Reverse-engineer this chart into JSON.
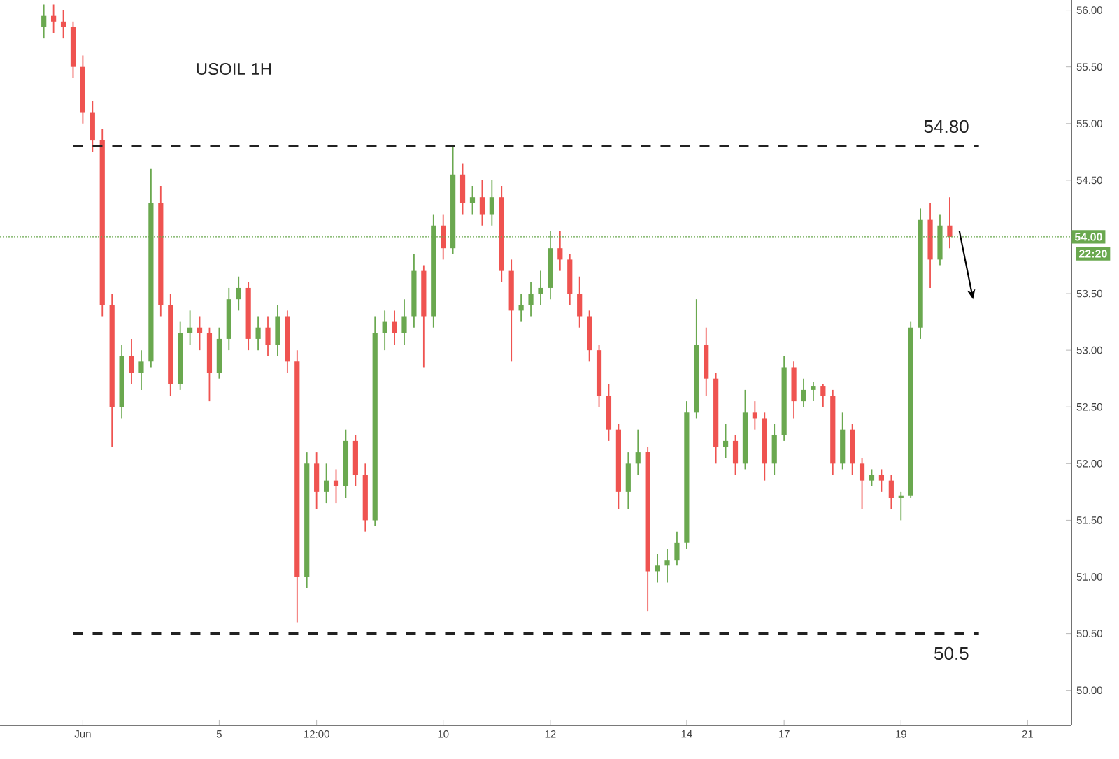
{
  "chart_data": {
    "type": "candlestick",
    "title": "USOIL 1H",
    "categories": [
      null,
      null,
      null,
      null,
      null,
      null,
      null,
      null,
      "Jun",
      null,
      null,
      null,
      null,
      null,
      null,
      null,
      null,
      null,
      null,
      null,
      null,
      null,
      "5",
      null,
      null,
      null,
      null,
      null,
      null,
      null,
      null,
      null,
      "12:00",
      null,
      null,
      null,
      null,
      null,
      null,
      null,
      null,
      null,
      null,
      null,
      null,
      "10",
      null,
      null,
      null,
      null,
      null,
      null,
      null,
      null,
      null,
      null,
      "12",
      null,
      null,
      null,
      null,
      null,
      null,
      null,
      null,
      null,
      null,
      null,
      null,
      null,
      "14",
      null,
      null,
      null,
      null,
      null,
      null,
      null,
      null,
      null,
      "17",
      null,
      null,
      null,
      null,
      null,
      null,
      null,
      null,
      null,
      null,
      null,
      "19",
      null,
      null,
      null,
      null,
      null,
      null,
      null,
      null,
      null,
      null,
      null,
      null,
      "21",
      null,
      null,
      null,
      null
    ],
    "ylim": [
      49.69,
      56.09
    ],
    "yticks": [
      {
        "value": 50,
        "label": "50.00"
      },
      {
        "value": 50.5,
        "label": "50.50"
      },
      {
        "value": 51,
        "label": "51.00"
      },
      {
        "value": 51.5,
        "label": "51.50"
      },
      {
        "value": 52,
        "label": "52.00"
      },
      {
        "value": 52.5,
        "label": "52.50"
      },
      {
        "value": 53,
        "label": "53.00"
      },
      {
        "value": 53.5,
        "label": "53.50"
      },
      {
        "value": 54.5,
        "label": "54.50"
      },
      {
        "value": 55,
        "label": "55.00"
      },
      {
        "value": 55.5,
        "label": "55.50"
      },
      {
        "value": 56,
        "label": "56.00"
      }
    ],
    "ohlc": [
      null,
      null,
      null,
      null,
      [
        55.85,
        56.05,
        55.75,
        55.95
      ],
      [
        55.95,
        56.05,
        55.8,
        55.9
      ],
      [
        55.9,
        56.0,
        55.75,
        55.85
      ],
      [
        55.85,
        55.9,
        55.4,
        55.5
      ],
      [
        55.5,
        55.6,
        55.0,
        55.1
      ],
      [
        55.1,
        55.2,
        54.75,
        54.85
      ],
      [
        54.85,
        54.95,
        53.3,
        53.4
      ],
      [
        53.4,
        53.5,
        52.15,
        52.5
      ],
      [
        52.5,
        53.05,
        52.4,
        52.95
      ],
      [
        52.95,
        53.1,
        52.7,
        52.8
      ],
      [
        52.8,
        53.0,
        52.65,
        52.9
      ],
      [
        52.9,
        54.6,
        52.85,
        54.3
      ],
      [
        54.3,
        54.45,
        53.3,
        53.4
      ],
      [
        53.4,
        53.5,
        52.6,
        52.7
      ],
      [
        52.7,
        53.25,
        52.65,
        53.15
      ],
      [
        53.15,
        53.35,
        53.05,
        53.2
      ],
      [
        53.2,
        53.3,
        53.0,
        53.15
      ],
      [
        53.15,
        53.2,
        52.55,
        52.8
      ],
      [
        52.8,
        53.2,
        52.75,
        53.1
      ],
      [
        53.1,
        53.55,
        53.0,
        53.45
      ],
      [
        53.45,
        53.65,
        53.35,
        53.55
      ],
      [
        53.55,
        53.6,
        53.0,
        53.1
      ],
      [
        53.1,
        53.3,
        53.0,
        53.2
      ],
      [
        53.2,
        53.3,
        52.95,
        53.05
      ],
      [
        53.05,
        53.4,
        52.95,
        53.3
      ],
      [
        53.3,
        53.35,
        52.8,
        52.9
      ],
      [
        52.9,
        53.0,
        50.6,
        51.0
      ],
      [
        51.0,
        52.1,
        50.9,
        52.0
      ],
      [
        52.0,
        52.1,
        51.6,
        51.75
      ],
      [
        51.75,
        52.0,
        51.65,
        51.85
      ],
      [
        51.85,
        51.95,
        51.65,
        51.8
      ],
      [
        51.8,
        52.3,
        51.7,
        52.2
      ],
      [
        52.2,
        52.25,
        51.8,
        51.9
      ],
      [
        51.9,
        52.0,
        51.4,
        51.5
      ],
      [
        51.5,
        53.3,
        51.45,
        53.15
      ],
      [
        53.15,
        53.35,
        53.0,
        53.25
      ],
      [
        53.25,
        53.35,
        53.05,
        53.15
      ],
      [
        53.15,
        53.45,
        53.05,
        53.3
      ],
      [
        53.3,
        53.85,
        53.2,
        53.7
      ],
      [
        53.7,
        53.75,
        52.85,
        53.3
      ],
      [
        53.3,
        54.2,
        53.2,
        54.1
      ],
      [
        54.1,
        54.2,
        53.8,
        53.9
      ],
      [
        53.9,
        54.8,
        53.85,
        54.55
      ],
      [
        54.55,
        54.65,
        54.2,
        54.3
      ],
      [
        54.3,
        54.45,
        54.2,
        54.35
      ],
      [
        54.35,
        54.5,
        54.1,
        54.2
      ],
      [
        54.2,
        54.5,
        54.1,
        54.35
      ],
      [
        54.35,
        54.45,
        53.6,
        53.7
      ],
      [
        53.7,
        53.8,
        52.9,
        53.35
      ],
      [
        53.35,
        53.5,
        53.25,
        53.4
      ],
      [
        53.4,
        53.6,
        53.3,
        53.5
      ],
      [
        53.5,
        53.7,
        53.4,
        53.55
      ],
      [
        53.55,
        54.05,
        53.45,
        53.9
      ],
      [
        53.9,
        54.05,
        53.7,
        53.8
      ],
      [
        53.8,
        53.85,
        53.4,
        53.5
      ],
      [
        53.5,
        53.65,
        53.2,
        53.3
      ],
      [
        53.3,
        53.35,
        52.9,
        53.0
      ],
      [
        53.0,
        53.05,
        52.5,
        52.6
      ],
      [
        52.6,
        52.7,
        52.2,
        52.3
      ],
      [
        52.3,
        52.35,
        51.6,
        51.75
      ],
      [
        51.75,
        52.1,
        51.6,
        52.0
      ],
      [
        52.0,
        52.3,
        51.9,
        52.1
      ],
      [
        52.1,
        52.15,
        50.7,
        51.05
      ],
      [
        51.05,
        51.2,
        50.95,
        51.1
      ],
      [
        51.1,
        51.25,
        50.95,
        51.15
      ],
      [
        51.15,
        51.4,
        51.1,
        51.3
      ],
      [
        51.3,
        52.55,
        51.25,
        52.45
      ],
      [
        52.45,
        53.45,
        52.4,
        53.05
      ],
      [
        53.05,
        53.2,
        52.6,
        52.75
      ],
      [
        52.75,
        52.8,
        52.0,
        52.15
      ],
      [
        52.15,
        52.35,
        52.05,
        52.2
      ],
      [
        52.2,
        52.25,
        51.9,
        52.0
      ],
      [
        52.0,
        52.65,
        51.95,
        52.45
      ],
      [
        52.45,
        52.55,
        52.3,
        52.4
      ],
      [
        52.4,
        52.45,
        51.85,
        52.0
      ],
      [
        52.0,
        52.35,
        51.9,
        52.25
      ],
      [
        52.25,
        52.95,
        52.2,
        52.85
      ],
      [
        52.85,
        52.9,
        52.4,
        52.55
      ],
      [
        52.55,
        52.75,
        52.5,
        52.65
      ],
      [
        52.65,
        52.72,
        52.55,
        52.68
      ],
      [
        52.68,
        52.7,
        52.5,
        52.6
      ],
      [
        52.6,
        52.65,
        51.9,
        52.0
      ],
      [
        52.0,
        52.45,
        51.95,
        52.3
      ],
      [
        52.3,
        52.35,
        51.9,
        52.0
      ],
      [
        52.0,
        52.05,
        51.6,
        51.85
      ],
      [
        51.85,
        51.95,
        51.8,
        51.9
      ],
      [
        51.9,
        51.95,
        51.75,
        51.85
      ],
      [
        51.85,
        51.9,
        51.6,
        51.7
      ],
      [
        51.7,
        51.75,
        51.5,
        51.72
      ],
      [
        51.72,
        53.25,
        51.7,
        53.2
      ],
      [
        53.2,
        54.25,
        53.1,
        54.15
      ],
      [
        54.15,
        54.3,
        53.55,
        53.8
      ],
      [
        53.8,
        54.2,
        53.75,
        54.1
      ],
      [
        54.1,
        54.35,
        53.9,
        54.0
      ],
      null,
      null,
      null,
      null,
      null,
      null,
      null,
      null,
      null,
      null,
      null,
      null
    ],
    "colors": [
      null,
      null,
      null,
      null,
      "#6aa84f",
      "#ef5350",
      "#ef5350",
      "#ef5350",
      "#ef5350",
      "#ef5350",
      "#ef5350",
      "#ef5350",
      "#6aa84f",
      "#ef5350",
      "#6aa84f",
      "#6aa84f",
      "#ef5350",
      "#ef5350",
      "#6aa84f",
      "#6aa84f",
      "#ef5350",
      "#ef5350",
      "#6aa84f",
      "#6aa84f",
      "#6aa84f",
      "#ef5350",
      "#6aa84f",
      "#ef5350",
      "#6aa84f",
      "#ef5350",
      "#ef5350",
      "#6aa84f",
      "#ef5350",
      "#6aa84f",
      "#ef5350",
      "#6aa84f",
      "#ef5350",
      "#ef5350",
      "#6aa84f",
      "#6aa84f",
      "#ef5350",
      "#6aa84f",
      "#6aa84f",
      "#ef5350",
      "#6aa84f",
      "#ef5350",
      "#6aa84f",
      "#ef5350",
      "#6aa84f",
      "#ef5350",
      "#6aa84f",
      "#ef5350",
      "#ef5350",
      "#6aa84f",
      "#6aa84f",
      "#6aa84f",
      "#6aa84f",
      "#ef5350",
      "#ef5350",
      "#ef5350",
      "#ef5350",
      "#ef5350",
      "#ef5350",
      "#ef5350",
      "#6aa84f",
      "#6aa84f",
      "#ef5350",
      "#6aa84f",
      "#6aa84f",
      "#6aa84f",
      "#6aa84f",
      "#6aa84f",
      "#ef5350",
      "#ef5350",
      "#6aa84f",
      "#ef5350",
      "#6aa84f",
      "#ef5350",
      "#ef5350",
      "#6aa84f",
      "#6aa84f",
      "#ef5350",
      "#6aa84f",
      "#6aa84f",
      "#ef5350",
      "#ef5350",
      "#6aa84f",
      "#ef5350",
      "#ef5350",
      "#6aa84f",
      "#ef5350",
      "#ef5350",
      "#6aa84f",
      "#6aa84f",
      "#6aa84f",
      "#ef5350",
      "#6aa84f",
      "#ef5350",
      null,
      null,
      null,
      null,
      null,
      null,
      null,
      null,
      null,
      null,
      null,
      null
    ],
    "ref_lines": [
      {
        "axis": "y",
        "value": 54.8,
        "label": "54.80",
        "color": "#222222",
        "line_style": "dashed"
      },
      {
        "axis": "y",
        "value": 50.5,
        "label": "50.5",
        "color": "#222222",
        "line_style": "dashed"
      },
      {
        "axis": "y",
        "value": 54.0,
        "label": "54.00",
        "color": "#6aa84f",
        "line_style": "dotted"
      }
    ],
    "annotations": [
      "22:20"
    ]
  }
}
